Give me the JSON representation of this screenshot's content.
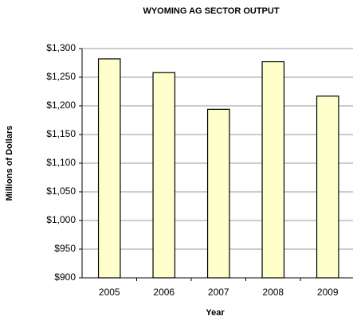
{
  "chart_data": {
    "type": "bar",
    "title": "WYOMING AG SECTOR OUTPUT",
    "x_label": "Year",
    "y_label": "Millions of Dollars",
    "categories": [
      "2005",
      "2006",
      "2007",
      "2008",
      "2009"
    ],
    "values": [
      1282,
      1258,
      1194,
      1277,
      1217
    ],
    "color": "#ffffcc",
    "ylim": [
      900,
      1300
    ],
    "yticks": [
      {
        "value": 900,
        "label": "$900"
      },
      {
        "value": 950,
        "label": "$950"
      },
      {
        "value": 1000,
        "label": "$1,000"
      },
      {
        "value": 1050,
        "label": "$1,050"
      },
      {
        "value": 1100,
        "label": "$1,100"
      },
      {
        "value": 1150,
        "label": "$1,150"
      },
      {
        "value": 1200,
        "label": "$1,200"
      },
      {
        "value": 1250,
        "label": "$1,250"
      },
      {
        "value": 1300,
        "label": "$1,300"
      }
    ],
    "grid": true
  }
}
